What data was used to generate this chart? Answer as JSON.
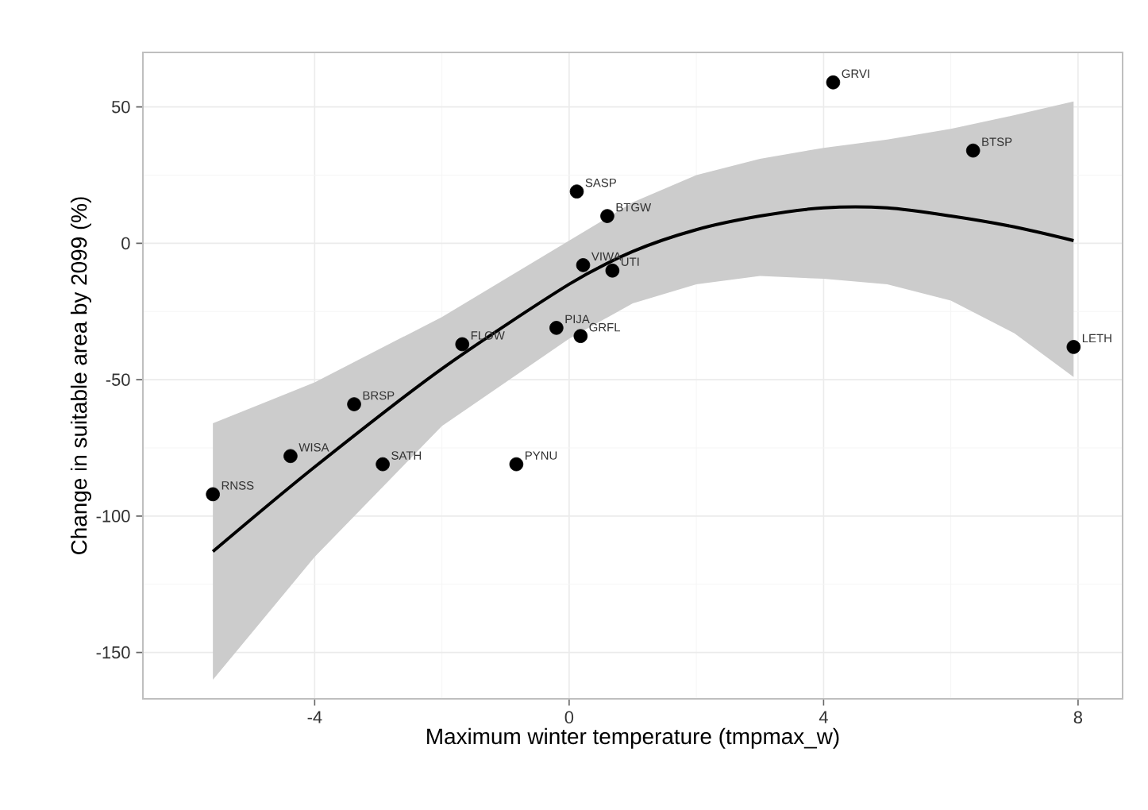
{
  "chart_data": {
    "type": "scatter",
    "xlabel": "Maximum winter temperature (tmpmax_w)",
    "ylabel": "Change in suitable area by 2099 (%)",
    "xlim": [
      -6.7,
      8.7
    ],
    "ylim": [
      -167,
      70
    ],
    "xticks": [
      -4,
      0,
      4,
      8
    ],
    "yticks": [
      -150,
      -100,
      -50,
      0,
      50
    ],
    "grid": true,
    "series": [
      {
        "color": "#000000",
        "marker": "circle",
        "x": [
          -5.6,
          -4.38,
          -3.38,
          -2.93,
          -1.68,
          -0.83,
          -0.2,
          0.18,
          0.12,
          0.6,
          0.22,
          0.68,
          4.15,
          6.35,
          7.93
        ],
        "values": [
          -92,
          -78,
          -59,
          -81,
          -37,
          -81,
          -31,
          -34,
          19,
          10,
          -8,
          -10,
          59,
          34,
          -38
        ]
      },
      {
        "type": "line",
        "color": "#000000",
        "marker": "none",
        "x": [
          -5.6,
          -4,
          -2,
          0,
          1,
          2,
          3,
          4,
          5,
          6,
          7,
          7.93
        ],
        "values": [
          -113,
          -82,
          -46,
          -15,
          -3,
          5,
          10,
          13,
          13,
          10,
          6,
          1
        ],
        "lower": [
          -160,
          -115,
          -67,
          -35,
          -22,
          -15,
          -12,
          -13,
          -15,
          -21,
          -33,
          -49
        ],
        "upper": [
          -66,
          -51,
          -27,
          1,
          15,
          25,
          31,
          35,
          38,
          42,
          47,
          52
        ]
      }
    ],
    "annotations": [
      {
        "text": "RNSS",
        "x": -5.6,
        "y": -92
      },
      {
        "text": "WISA",
        "x": -4.38,
        "y": -78
      },
      {
        "text": "BRSP",
        "x": -3.38,
        "y": -59
      },
      {
        "text": "SATH",
        "x": -2.93,
        "y": -81
      },
      {
        "text": "FLOW",
        "x": -1.68,
        "y": -37
      },
      {
        "text": "PYNU",
        "x": -0.83,
        "y": -81
      },
      {
        "text": "PIJA",
        "x": -0.2,
        "y": -31
      },
      {
        "text": "GRFL",
        "x": 0.18,
        "y": -34
      },
      {
        "text": "SASP",
        "x": 0.12,
        "y": 19
      },
      {
        "text": "BTGW",
        "x": 0.6,
        "y": 10
      },
      {
        "text": "VIWA",
        "x": 0.22,
        "y": -8
      },
      {
        "text": "UTI",
        "x": 0.68,
        "y": -10
      },
      {
        "text": "GRVI",
        "x": 4.15,
        "y": 59
      },
      {
        "text": "BTSP",
        "x": 6.35,
        "y": 34
      },
      {
        "text": "LETH",
        "x": 7.93,
        "y": -38
      }
    ]
  }
}
